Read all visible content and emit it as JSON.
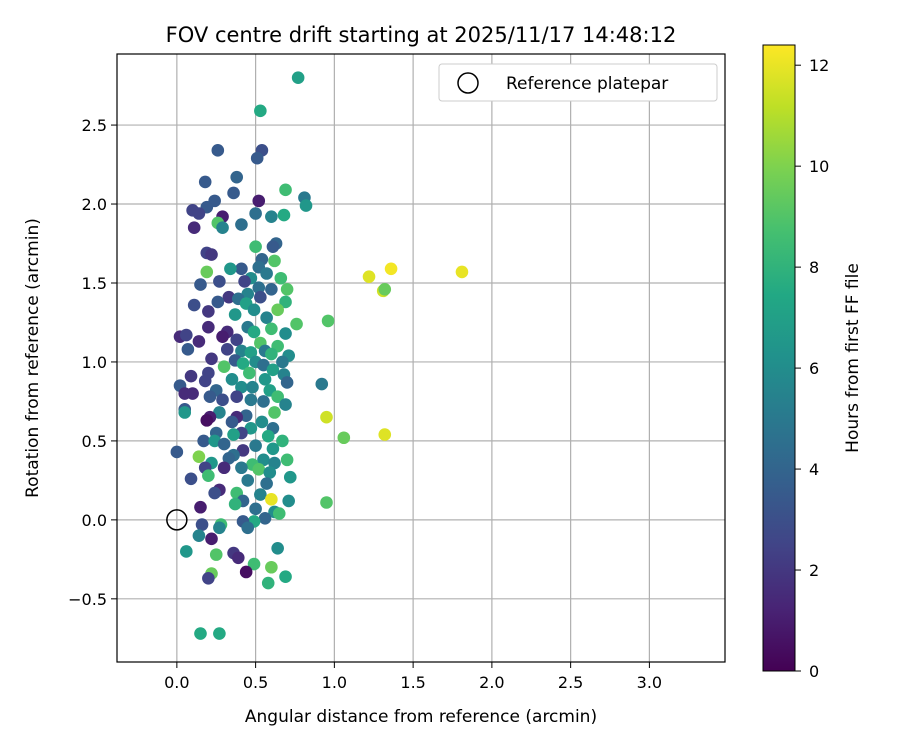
{
  "chart_data": {
    "type": "scatter",
    "title": "FOV centre drift starting at 2025/11/17 14:48:12",
    "xlabel": "Angular distance from reference (arcmin)",
    "ylabel": "Rotation from reference (arcmin)",
    "xlim": [
      -0.38,
      3.48
    ],
    "ylim": [
      -0.9,
      2.95
    ],
    "x_ticks": [
      0.0,
      0.5,
      1.0,
      1.5,
      2.0,
      2.5,
      3.0
    ],
    "y_ticks": [
      -0.5,
      0.0,
      0.5,
      1.0,
      1.5,
      2.0,
      2.5
    ],
    "x_tick_labels": [
      "0.0",
      "0.5",
      "1.0",
      "1.5",
      "2.0",
      "2.5",
      "3.0"
    ],
    "y_tick_labels": [
      "−0.5",
      "0.0",
      "0.5",
      "1.0",
      "1.5",
      "2.0",
      "2.5"
    ],
    "grid": true,
    "legend": {
      "placement": "top-right",
      "entries": [
        "Reference platepar"
      ]
    },
    "reference_point": {
      "x": 0.0,
      "y": 0.0,
      "label": "Reference platepar"
    },
    "colorbar": {
      "label": "Hours from first FF file",
      "range": [
        0,
        12.4
      ],
      "ticks": [
        0,
        2,
        4,
        6,
        8,
        10,
        12
      ],
      "tick_labels": [
        "0",
        "2",
        "4",
        "6",
        "8",
        "10",
        "12"
      ],
      "colormap": "viridis"
    },
    "points": [
      [
        0.77,
        2.8,
        7.0
      ],
      [
        0.53,
        2.59,
        7.5
      ],
      [
        0.54,
        2.34,
        3.0
      ],
      [
        0.26,
        2.34,
        3.5
      ],
      [
        0.51,
        2.29,
        3.5
      ],
      [
        0.38,
        2.17,
        4.0
      ],
      [
        0.18,
        2.14,
        3.5
      ],
      [
        0.69,
        2.09,
        8.5
      ],
      [
        0.36,
        2.07,
        3.5
      ],
      [
        0.81,
        2.04,
        5.0
      ],
      [
        0.24,
        2.02,
        3.5
      ],
      [
        0.52,
        2.02,
        1.0
      ],
      [
        0.82,
        1.99,
        6.5
      ],
      [
        0.19,
        1.98,
        3.5
      ],
      [
        0.1,
        1.96,
        2.5
      ],
      [
        0.14,
        1.94,
        2.5
      ],
      [
        0.5,
        1.94,
        4.5
      ],
      [
        0.6,
        1.92,
        5.5
      ],
      [
        0.68,
        1.93,
        7.5
      ],
      [
        0.29,
        1.92,
        1.0
      ],
      [
        0.26,
        1.88,
        9.0
      ],
      [
        0.11,
        1.85,
        1.5
      ],
      [
        0.29,
        1.85,
        5.5
      ],
      [
        0.41,
        1.87,
        4.5
      ],
      [
        0.63,
        1.75,
        4.0
      ],
      [
        0.61,
        1.73,
        3.5
      ],
      [
        0.5,
        1.73,
        8.5
      ],
      [
        0.19,
        1.69,
        2.5
      ],
      [
        0.22,
        1.68,
        2.0
      ],
      [
        0.54,
        1.65,
        4.0
      ],
      [
        0.62,
        1.64,
        9.0
      ],
      [
        0.52,
        1.6,
        4.5
      ],
      [
        0.41,
        1.59,
        3.5
      ],
      [
        0.34,
        1.59,
        6.5
      ],
      [
        0.19,
        1.57,
        9.5
      ],
      [
        0.57,
        1.56,
        5.0
      ],
      [
        0.47,
        1.53,
        6.0
      ],
      [
        0.43,
        1.51,
        2.5
      ],
      [
        0.27,
        1.51,
        3.0
      ],
      [
        0.66,
        1.53,
        8.5
      ],
      [
        0.15,
        1.49,
        3.5
      ],
      [
        0.52,
        1.47,
        4.5
      ],
      [
        0.7,
        1.46,
        9.0
      ],
      [
        0.6,
        1.46,
        4.0
      ],
      [
        1.22,
        1.54,
        11.8
      ],
      [
        1.36,
        1.59,
        12.2
      ],
      [
        1.81,
        1.57,
        12.0
      ],
      [
        1.31,
        1.45,
        11.5
      ],
      [
        1.32,
        1.46,
        9.5
      ],
      [
        0.45,
        1.43,
        5.5
      ],
      [
        0.33,
        1.41,
        2.0
      ],
      [
        0.39,
        1.4,
        4.5
      ],
      [
        0.53,
        1.41,
        3.0
      ],
      [
        0.69,
        1.38,
        8.0
      ],
      [
        0.26,
        1.38,
        3.5
      ],
      [
        0.2,
        1.32,
        2.0
      ],
      [
        0.11,
        1.36,
        3.0
      ],
      [
        0.44,
        1.37,
        7.0
      ],
      [
        0.49,
        1.33,
        6.0
      ],
      [
        0.64,
        1.33,
        9.5
      ],
      [
        0.37,
        1.3,
        6.5
      ],
      [
        0.57,
        1.28,
        5.5
      ],
      [
        0.96,
        1.26,
        9.0
      ],
      [
        0.45,
        1.22,
        5.0
      ],
      [
        0.6,
        1.21,
        8.5
      ],
      [
        0.2,
        1.22,
        1.5
      ],
      [
        0.32,
        1.19,
        1.5
      ],
      [
        0.69,
        1.18,
        6.0
      ],
      [
        0.49,
        1.19,
        7.5
      ],
      [
        0.02,
        1.16,
        1.5
      ],
      [
        0.06,
        1.17,
        2.5
      ],
      [
        0.29,
        1.16,
        1.0
      ],
      [
        0.38,
        1.14,
        2.5
      ],
      [
        0.14,
        1.13,
        1.5
      ],
      [
        0.53,
        1.12,
        9.0
      ],
      [
        0.76,
        1.24,
        9.0
      ],
      [
        0.64,
        1.1,
        8.5
      ],
      [
        0.07,
        1.08,
        3.5
      ],
      [
        0.32,
        1.08,
        2.5
      ],
      [
        0.41,
        1.07,
        5.5
      ],
      [
        0.47,
        1.06,
        7.0
      ],
      [
        0.56,
        1.07,
        5.0
      ],
      [
        0.71,
        1.04,
        6.0
      ],
      [
        0.6,
        1.05,
        8.0
      ],
      [
        0.22,
        1.02,
        2.0
      ],
      [
        0.37,
        1.01,
        3.5
      ],
      [
        0.5,
        1.0,
        6.0
      ],
      [
        0.67,
        1.0,
        5.0
      ],
      [
        0.42,
        0.99,
        7.5
      ],
      [
        0.3,
        0.97,
        9.0
      ],
      [
        0.55,
        0.98,
        4.5
      ],
      [
        0.61,
        0.95,
        7.0
      ],
      [
        0.46,
        0.93,
        8.5
      ],
      [
        0.2,
        0.93,
        2.5
      ],
      [
        0.68,
        0.92,
        5.5
      ],
      [
        0.09,
        0.91,
        2.0
      ],
      [
        0.35,
        0.89,
        6.0
      ],
      [
        0.18,
        0.88,
        2.5
      ],
      [
        0.56,
        0.89,
        6.5
      ],
      [
        0.7,
        0.87,
        4.0
      ],
      [
        0.92,
        0.86,
        5.0
      ],
      [
        0.02,
        0.85,
        3.5
      ],
      [
        0.41,
        0.84,
        6.0
      ],
      [
        0.48,
        0.84,
        5.5
      ],
      [
        0.25,
        0.82,
        4.0
      ],
      [
        0.59,
        0.82,
        7.0
      ],
      [
        0.1,
        0.8,
        1.5
      ],
      [
        0.05,
        0.8,
        1.5
      ],
      [
        0.38,
        0.78,
        2.5
      ],
      [
        0.21,
        0.78,
        3.5
      ],
      [
        0.64,
        0.78,
        8.5
      ],
      [
        0.47,
        0.76,
        5.0
      ],
      [
        0.29,
        0.76,
        3.0
      ],
      [
        0.55,
        0.75,
        4.5
      ],
      [
        0.69,
        0.73,
        5.5
      ],
      [
        0.05,
        0.7,
        3.5
      ],
      [
        0.05,
        0.68,
        6.5
      ],
      [
        0.27,
        0.68,
        5.5
      ],
      [
        0.62,
        0.68,
        9.0
      ],
      [
        0.44,
        0.66,
        4.0
      ],
      [
        0.38,
        0.65,
        1.5
      ],
      [
        0.21,
        0.65,
        1.0
      ],
      [
        0.19,
        0.63,
        0.5
      ],
      [
        0.35,
        0.62,
        3.5
      ],
      [
        0.54,
        0.62,
        6.0
      ],
      [
        0.95,
        0.65,
        11.5
      ],
      [
        0.47,
        0.58,
        6.5
      ],
      [
        0.61,
        0.58,
        4.5
      ],
      [
        0.25,
        0.55,
        4.0
      ],
      [
        0.41,
        0.55,
        2.5
      ],
      [
        0.36,
        0.54,
        7.0
      ],
      [
        0.58,
        0.53,
        7.5
      ],
      [
        1.06,
        0.52,
        9.5
      ],
      [
        1.32,
        0.54,
        11.8
      ],
      [
        0.67,
        0.5,
        8.0
      ],
      [
        0.17,
        0.5,
        3.5
      ],
      [
        0.24,
        0.5,
        6.5
      ],
      [
        0.3,
        0.48,
        4.0
      ],
      [
        0.5,
        0.47,
        5.0
      ],
      [
        0.42,
        0.44,
        2.0
      ],
      [
        0.61,
        0.45,
        6.5
      ],
      [
        0.0,
        0.43,
        3.5
      ],
      [
        0.36,
        0.41,
        4.5
      ],
      [
        0.14,
        0.4,
        10.0
      ],
      [
        0.33,
        0.39,
        4.0
      ],
      [
        0.55,
        0.38,
        6.0
      ],
      [
        0.7,
        0.38,
        8.5
      ],
      [
        0.22,
        0.36,
        6.5
      ],
      [
        0.48,
        0.35,
        8.5
      ],
      [
        0.62,
        0.36,
        5.5
      ],
      [
        0.18,
        0.33,
        2.5
      ],
      [
        0.3,
        0.33,
        1.5
      ],
      [
        0.41,
        0.33,
        5.0
      ],
      [
        0.52,
        0.32,
        9.0
      ],
      [
        0.59,
        0.3,
        6.0
      ],
      [
        0.2,
        0.28,
        8.5
      ],
      [
        0.72,
        0.27,
        6.5
      ],
      [
        0.09,
        0.26,
        3.0
      ],
      [
        0.45,
        0.25,
        5.0
      ],
      [
        0.57,
        0.23,
        4.5
      ],
      [
        0.27,
        0.19,
        1.5
      ],
      [
        0.38,
        0.17,
        8.5
      ],
      [
        0.53,
        0.16,
        5.5
      ],
      [
        0.24,
        0.17,
        3.0
      ],
      [
        0.6,
        0.13,
        12.0
      ],
      [
        0.71,
        0.12,
        6.0
      ],
      [
        0.95,
        0.11,
        9.0
      ],
      [
        0.42,
        0.12,
        4.0
      ],
      [
        0.37,
        0.1,
        8.0
      ],
      [
        0.15,
        0.08,
        1.0
      ],
      [
        0.5,
        0.07,
        4.5
      ],
      [
        0.62,
        0.05,
        6.0
      ],
      [
        0.65,
        0.04,
        8.5
      ],
      [
        0.56,
        0.01,
        4.0
      ],
      [
        0.49,
        -0.01,
        7.5
      ],
      [
        0.42,
        -0.01,
        3.5
      ],
      [
        0.28,
        -0.03,
        8.5
      ],
      [
        0.16,
        -0.03,
        3.0
      ],
      [
        0.27,
        -0.05,
        5.5
      ],
      [
        0.45,
        -0.05,
        4.5
      ],
      [
        0.14,
        -0.1,
        5.5
      ],
      [
        0.22,
        -0.12,
        1.0
      ],
      [
        0.06,
        -0.2,
        6.5
      ],
      [
        0.64,
        -0.18,
        6.0
      ],
      [
        0.25,
        -0.22,
        9.0
      ],
      [
        0.36,
        -0.21,
        2.0
      ],
      [
        0.39,
        -0.24,
        1.5
      ],
      [
        0.49,
        -0.28,
        8.5
      ],
      [
        0.6,
        -0.3,
        9.5
      ],
      [
        0.44,
        -0.33,
        0.5
      ],
      [
        0.22,
        -0.34,
        9.5
      ],
      [
        0.2,
        -0.37,
        2.5
      ],
      [
        0.69,
        -0.36,
        7.5
      ],
      [
        0.58,
        -0.4,
        8.0
      ],
      [
        0.15,
        -0.72,
        7.5
      ],
      [
        0.27,
        -0.72,
        7.5
      ]
    ]
  }
}
